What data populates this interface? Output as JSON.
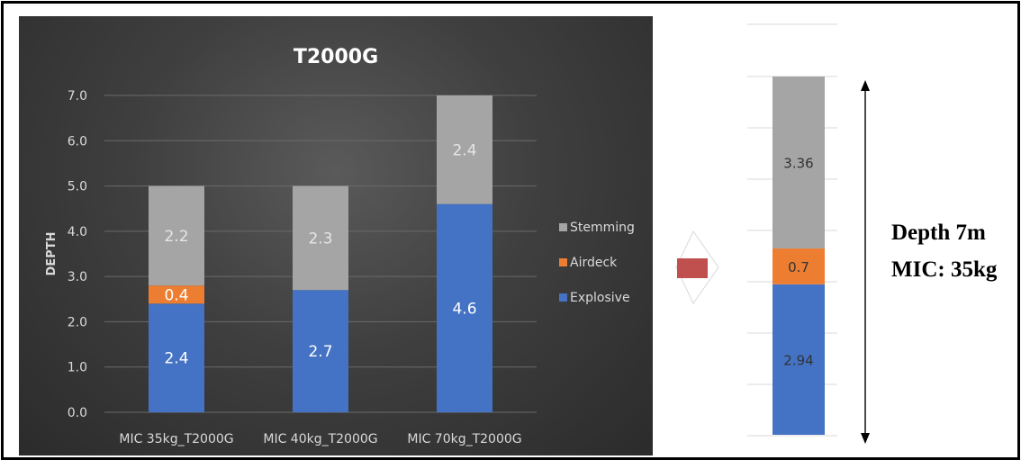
{
  "chart_data": [
    {
      "type": "bar",
      "stacked": true,
      "title": "T2000G",
      "ylabel": "DEPTH",
      "xlabel": "",
      "ylim": [
        0,
        7
      ],
      "yticks": [
        "0.0",
        "1.0",
        "2.0",
        "3.0",
        "4.0",
        "5.0",
        "6.0",
        "7.0"
      ],
      "categories": [
        "MIC 35kg_T2000G",
        "MIC 40kg_T2000G",
        "MIC 70kg_T2000G"
      ],
      "series": [
        {
          "name": "Explosive",
          "color": "#4472c4",
          "values": [
            2.4,
            2.7,
            4.6
          ],
          "labels": [
            "2.4",
            "2.7",
            "4.6"
          ]
        },
        {
          "name": "Airdeck",
          "color": "#ed7d31",
          "values": [
            0.4,
            0,
            0
          ],
          "labels": [
            "0.4",
            "",
            ""
          ]
        },
        {
          "name": "Stemming",
          "color": "#a5a5a5",
          "values": [
            2.2,
            2.3,
            2.4
          ],
          "labels": [
            "2.2",
            "2.3",
            "2.4"
          ]
        }
      ],
      "grid": true,
      "legend": "right",
      "legend_order": [
        "Stemming",
        "Airdeck",
        "Explosive"
      ]
    },
    {
      "type": "bar",
      "stacked": true,
      "ylim": [
        0,
        7
      ],
      "categories": [
        ""
      ],
      "series": [
        {
          "name": "Explosive",
          "color": "#4472c4",
          "values": [
            2.94
          ],
          "labels": [
            "2.94"
          ]
        },
        {
          "name": "Airdeck",
          "color": "#ed7d31",
          "values": [
            0.7
          ],
          "labels": [
            "0.7"
          ]
        },
        {
          "name": "Stemming",
          "color": "#a5a5a5",
          "values": [
            3.36
          ],
          "labels": [
            "3.36"
          ]
        }
      ],
      "grid": true
    }
  ],
  "annotation": {
    "line1": "Depth 7m",
    "line2": "MIC: 35kg"
  },
  "colors": {
    "panel_background": "#3a3a3a",
    "arrow": "#c0504d"
  }
}
